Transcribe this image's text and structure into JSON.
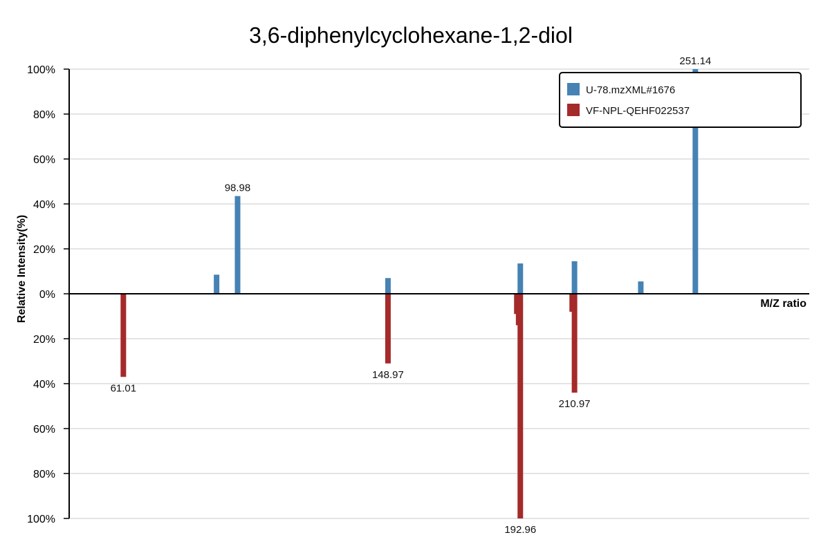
{
  "chart_data": {
    "type": "bar",
    "title": "3,6-diphenylcyclohexane-1,2-diol",
    "xlabel": "M/Z ratio",
    "ylabel": "Relative Intensity(%)",
    "ylim": [
      -100,
      100
    ],
    "y_ticks": [
      {
        "value": 100,
        "label": "100%"
      },
      {
        "value": 80,
        "label": "80%"
      },
      {
        "value": 60,
        "label": "60%"
      },
      {
        "value": 40,
        "label": "40%"
      },
      {
        "value": 20,
        "label": "20%"
      },
      {
        "value": 0,
        "label": "0%"
      },
      {
        "value": -20,
        "label": "20%"
      },
      {
        "value": -40,
        "label": "40%"
      },
      {
        "value": -60,
        "label": "60%"
      },
      {
        "value": -80,
        "label": "80%"
      },
      {
        "value": -100,
        "label": "100%"
      }
    ],
    "grid": true,
    "legend_position": "top-right",
    "x_range": [
      43,
      289
    ],
    "series": [
      {
        "name": "U-78.mzXML#1676",
        "color": "#4682b4",
        "direction": "up",
        "peaks": [
          {
            "mz": 92.0,
            "intensity": 8.5,
            "label": ""
          },
          {
            "mz": 98.98,
            "intensity": 43.5,
            "label": "98.98"
          },
          {
            "mz": 148.97,
            "intensity": 7.0,
            "label": ""
          },
          {
            "mz": 192.96,
            "intensity": 13.5,
            "label": ""
          },
          {
            "mz": 210.97,
            "intensity": 14.5,
            "label": ""
          },
          {
            "mz": 233.0,
            "intensity": 5.5,
            "label": ""
          },
          {
            "mz": 251.14,
            "intensity": 100,
            "label": "251.14"
          }
        ]
      },
      {
        "name": "VF-NPL-QEHF022537",
        "color": "#a52a2a",
        "direction": "down",
        "peaks": [
          {
            "mz": 61.01,
            "intensity": 37,
            "label": "61.01"
          },
          {
            "mz": 148.97,
            "intensity": 31,
            "label": "148.97"
          },
          {
            "mz": 191.8,
            "intensity": 9,
            "label": ""
          },
          {
            "mz": 192.4,
            "intensity": 14,
            "label": ""
          },
          {
            "mz": 192.96,
            "intensity": 100,
            "label": "192.96"
          },
          {
            "mz": 210.2,
            "intensity": 8,
            "label": ""
          },
          {
            "mz": 210.97,
            "intensity": 44,
            "label": "210.97"
          }
        ]
      }
    ]
  }
}
